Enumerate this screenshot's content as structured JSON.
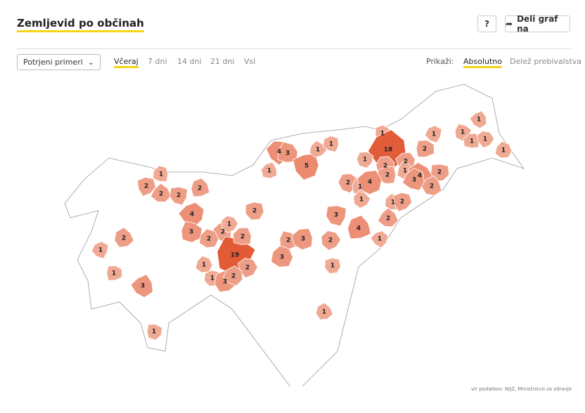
{
  "header": {
    "title": "Zemljevid po občinah",
    "help": "?",
    "share": "Deli graf na"
  },
  "controls": {
    "select": "Potrjeni primeri",
    "periods": [
      "Včeraj",
      "7 dni",
      "14 dni",
      "21 dni",
      "Vsi"
    ],
    "show_label": "Prikaži:",
    "modes": [
      "Absolutno",
      "Delež prebivalstva"
    ]
  },
  "map": {
    "values": [
      1,
      2,
      2,
      2,
      2,
      4,
      3,
      2,
      1,
      2,
      2,
      2,
      1,
      1,
      3,
      19,
      2,
      2,
      1,
      1,
      3,
      2,
      1,
      1,
      4,
      3,
      5,
      1,
      1,
      1,
      18,
      1,
      2,
      2,
      1,
      2,
      4,
      3,
      2,
      2,
      2,
      1,
      4,
      1,
      1,
      2,
      2,
      3,
      4,
      1,
      2,
      3,
      2,
      3,
      1,
      1,
      1,
      2,
      1,
      1,
      1,
      1,
      1
    ]
  },
  "footer": {
    "source": "vir podatkov: NIJZ, Ministrstvo za zdravje"
  }
}
